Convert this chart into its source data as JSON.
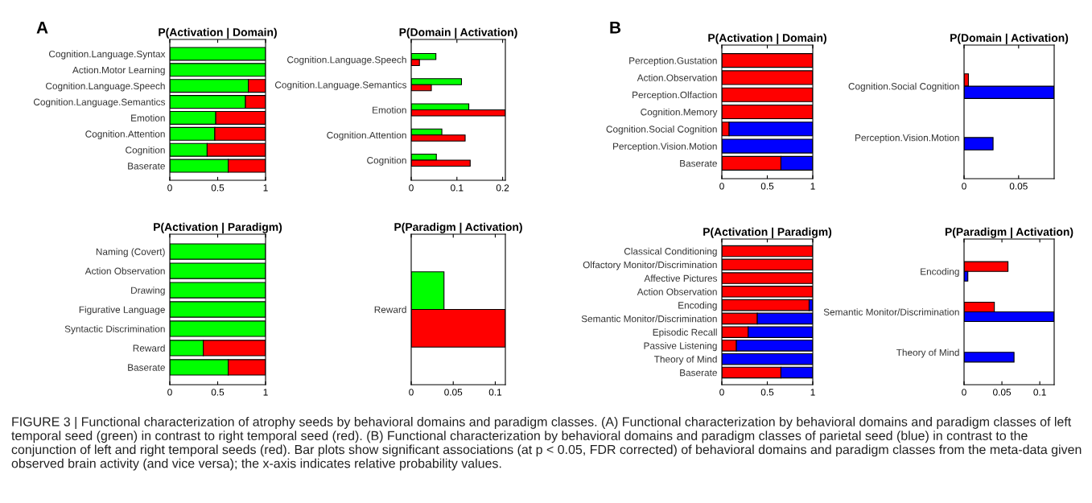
{
  "chart_data": [
    {
      "type": "bar",
      "orientation": "horizontal",
      "stacked": true,
      "title": "P(Activation | Domain)",
      "categories": [
        "Cognition.Language.Syntax",
        "Action.Motor Learning",
        "Cognition.Language.Speech",
        "Cognition.Language.Semantics",
        "Emotion",
        "Cognition.Attention",
        "Cognition",
        "Baserate"
      ],
      "series": [
        {
          "color": "#00ff00",
          "values": [
            1,
            1,
            0.82,
            0.79,
            0.48,
            0.47,
            0.39,
            0.61
          ]
        },
        {
          "color": "#ff0000",
          "values": [
            0,
            0,
            0.18,
            0.21,
            0.52,
            0.53,
            0.61,
            0.39
          ]
        }
      ],
      "xlim": [
        0,
        1
      ],
      "xticks": [
        0,
        0.5,
        1
      ],
      "annotations": [
        "A",
        "FIGURE 3 | Functional characterization of atrophy seeds by behavioral domains and paradigm classes. (A) Functional characterization by behavioral domains and paradigm classes of left temporal seed (green) in contrast to right temporal seed (red). (B) Functional characterization by behavioral domains and paradigm classes of parietal seed (blue) in contrast to the conjunction of left and right temporal seeds (red). Bar plots show significant associations (at p < 0.05, FDR corrected) of behavioral domains and paradigm classes from the meta-data given observed brain activity (and vice versa); the x-axis indicates relative probability values."
      ]
    },
    {
      "type": "bar",
      "orientation": "horizontal",
      "title": "P(Domain | Activation)",
      "categories": [
        "Cognition.Language.Speech",
        "Cognition.Language.Semantics",
        "Emotion",
        "Cognition.Attention",
        "Cognition"
      ],
      "series": [
        {
          "color": "#00ff00",
          "values": [
            0.054,
            0.11,
            0.126,
            0.067,
            0.055
          ]
        },
        {
          "color": "#ff0000",
          "values": [
            0.018,
            0.044,
            0.206,
            0.118,
            0.129
          ]
        }
      ],
      "xlim": [
        0,
        0.206
      ],
      "xticks": [
        0,
        0.1,
        0.2
      ]
    },
    {
      "type": "bar",
      "orientation": "horizontal",
      "stacked": true,
      "title": "P(Activation | Paradigm)",
      "categories": [
        "Naming (Covert)",
        "Action Observation",
        "Drawing",
        "Figurative Language",
        "Syntactic Discrimination",
        "Reward",
        "Baserate"
      ],
      "series": [
        {
          "color": "#00ff00",
          "values": [
            1,
            1,
            1,
            1,
            1,
            0.35,
            0.61
          ]
        },
        {
          "color": "#ff0000",
          "values": [
            0,
            0,
            0,
            0,
            0,
            0.65,
            0.39
          ]
        }
      ],
      "xlim": [
        0,
        1
      ],
      "xticks": [
        0,
        0.5,
        1
      ]
    },
    {
      "type": "bar",
      "orientation": "horizontal",
      "title": "P(Paradigm | Activation)",
      "categories": [
        "Reward"
      ],
      "series": [
        {
          "color": "#00ff00",
          "values": [
            0.039
          ]
        },
        {
          "color": "#ff0000",
          "values": [
            0.112
          ]
        }
      ],
      "xlim": [
        0,
        0.112
      ],
      "xticks": [
        0,
        0.05,
        0.1
      ]
    },
    {
      "type": "bar",
      "orientation": "horizontal",
      "stacked": true,
      "title": "P(Activation | Domain)",
      "categories": [
        "Perception.Gustation",
        "Action.Observation",
        "Perception.Olfaction",
        "Cognition.Memory",
        "Cognition.Social Cognition",
        "Perception.Vision.Motion",
        "Baserate"
      ],
      "series": [
        {
          "color": "#ff0000",
          "values": [
            1,
            1,
            1,
            1,
            0.08,
            0,
            0.65
          ]
        },
        {
          "color": "#0000ff",
          "values": [
            0,
            0,
            0,
            0,
            0.92,
            1,
            0.35
          ]
        }
      ],
      "xlim": [
        0,
        1
      ],
      "xticks": [
        0,
        0.5,
        1
      ],
      "annotations": [
        "B"
      ]
    },
    {
      "type": "bar",
      "orientation": "horizontal",
      "title": "P(Domain | Activation)",
      "categories": [
        "Cognition.Social Cognition",
        "Perception.Vision.Motion"
      ],
      "series": [
        {
          "color": "#ff0000",
          "values": [
            0.004,
            0
          ]
        },
        {
          "color": "#0000ff",
          "values": [
            0.0826,
            0.0266
          ]
        }
      ],
      "xlim": [
        0,
        0.0826
      ],
      "xticks": [
        0,
        0.05
      ]
    },
    {
      "type": "bar",
      "orientation": "horizontal",
      "stacked": true,
      "title": "P(Activation | Paradigm)",
      "categories": [
        "Classical Conditioning",
        "Olfactory Monitor/Discrimination",
        "Affective Pictures",
        "Action Observation",
        "Encoding",
        "Semantic Monitor/Discrimination",
        "Episodic Recall",
        "Passive Listening",
        "Theory of Mind",
        "Baserate"
      ],
      "series": [
        {
          "color": "#ff0000",
          "values": [
            1,
            1,
            1,
            1,
            0.96,
            0.39,
            0.29,
            0.16,
            0,
            0.65
          ]
        },
        {
          "color": "#0000ff",
          "values": [
            0,
            0,
            0,
            0,
            0.04,
            0.61,
            0.71,
            0.84,
            1,
            0.35
          ]
        }
      ],
      "xlim": [
        0,
        1
      ],
      "xticks": [
        0,
        0.5,
        1
      ]
    },
    {
      "type": "bar",
      "orientation": "horizontal",
      "title": "P(Paradigm | Activation)",
      "categories": [
        "Encoding",
        "Semantic Monitor/Discrimination",
        "Theory of Mind"
      ],
      "series": [
        {
          "color": "#ff0000",
          "values": [
            0.058,
            0.04,
            0
          ]
        },
        {
          "color": "#0000ff",
          "values": [
            0.005,
            0.119,
            0.066
          ]
        }
      ],
      "xlim": [
        0,
        0.119
      ],
      "xticks": [
        0,
        0.05,
        0.1
      ]
    }
  ]
}
